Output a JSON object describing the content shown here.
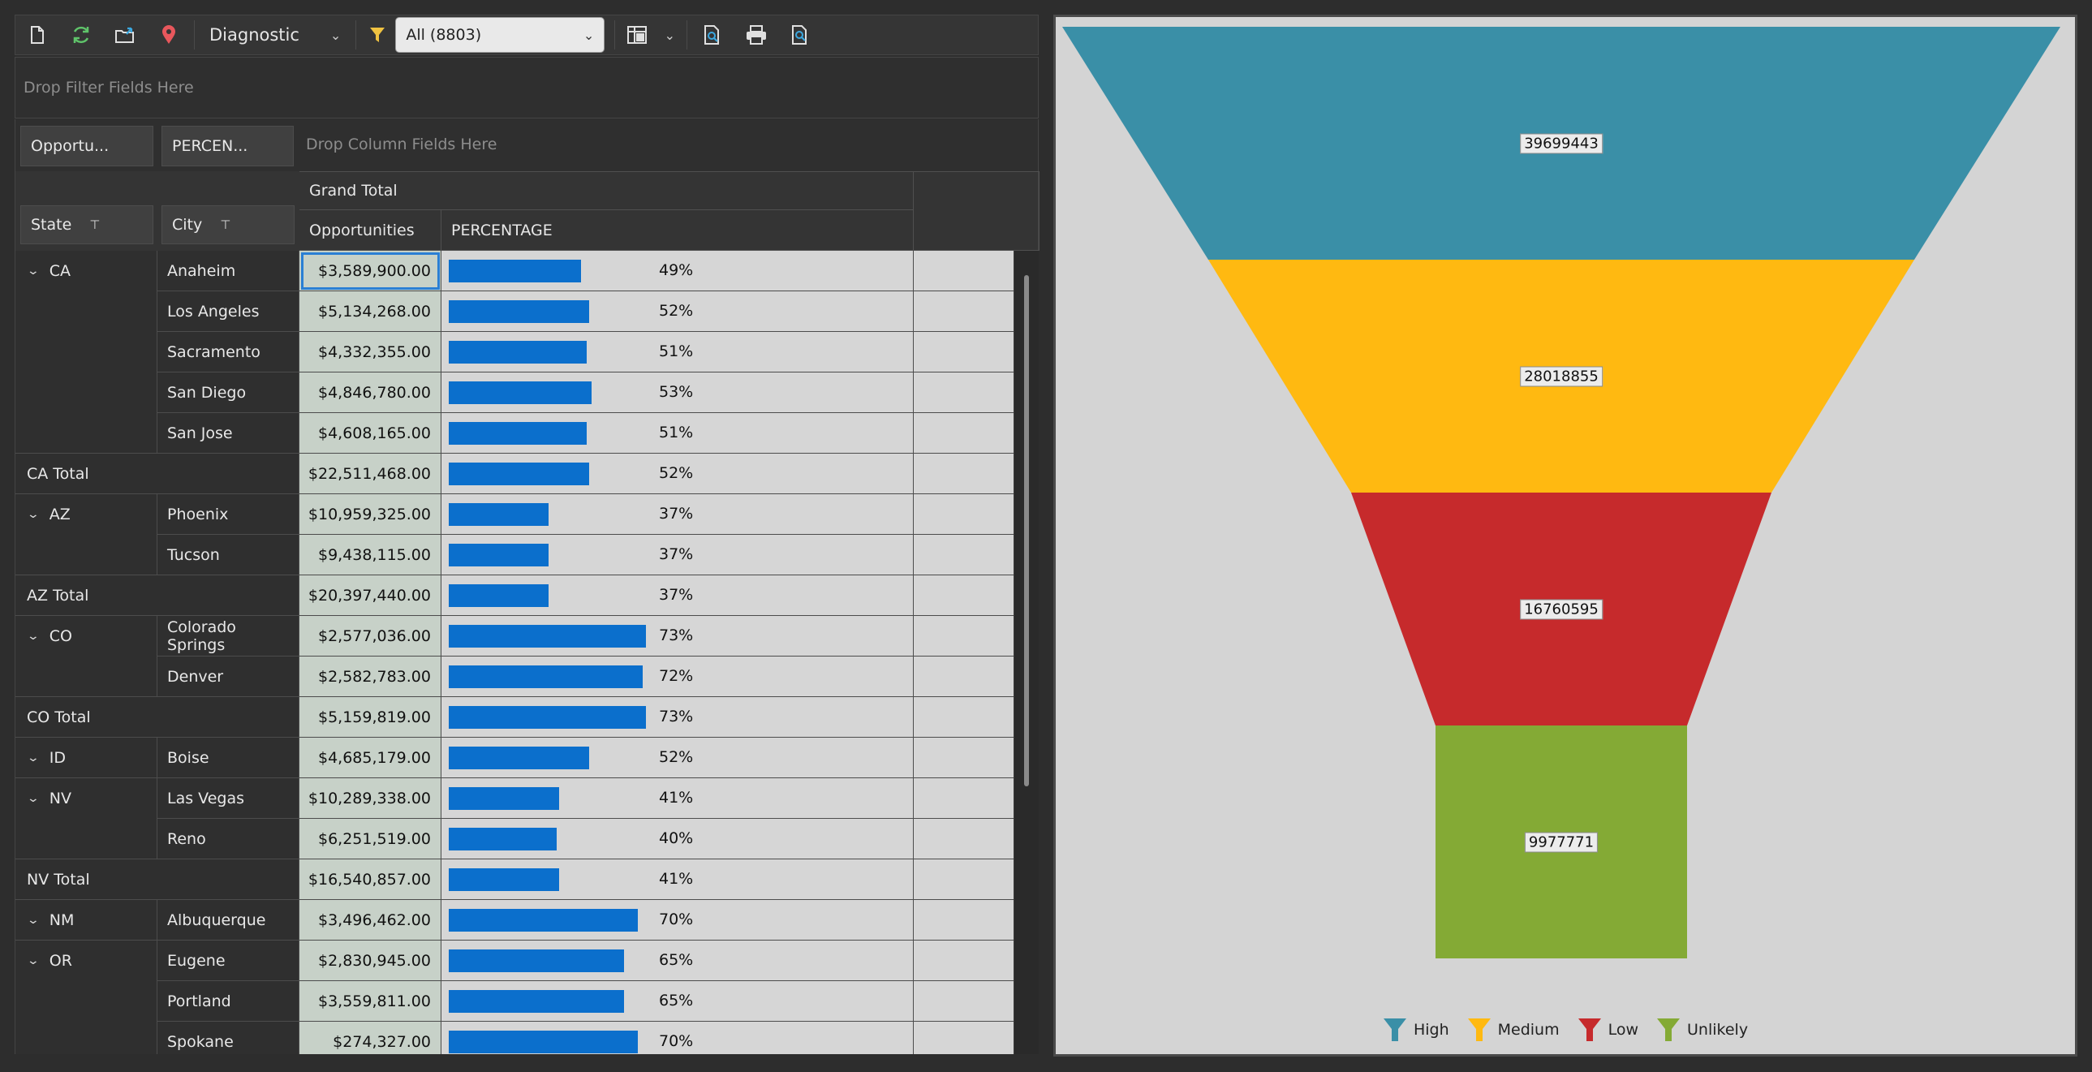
{
  "toolbar": {
    "mode_label": "Diagnostic",
    "filter_value": "All (8803)"
  },
  "filter_area": {
    "placeholder": "Drop Filter Fields Here"
  },
  "column_area": {
    "fields": [
      "Opportu...",
      "PERCEN..."
    ],
    "placeholder": "Drop Column Fields Here"
  },
  "header": {
    "grand_total": "Grand Total",
    "opportunities": "Opportunities",
    "percentage": "PERCENTAGE",
    "row_fields": [
      "State",
      "City"
    ]
  },
  "rows": [
    {
      "type": "data",
      "state": "CA",
      "city": "Anaheim",
      "opp": "$3,589,900.00",
      "pct": "49%",
      "frac": 0.49
    },
    {
      "type": "data",
      "state": "",
      "city": "Los Angeles",
      "opp": "$5,134,268.00",
      "pct": "52%",
      "frac": 0.52
    },
    {
      "type": "data",
      "state": "",
      "city": "Sacramento",
      "opp": "$4,332,355.00",
      "pct": "51%",
      "frac": 0.51
    },
    {
      "type": "data",
      "state": "",
      "city": "San Diego",
      "opp": "$4,846,780.00",
      "pct": "53%",
      "frac": 0.53
    },
    {
      "type": "data",
      "state": "",
      "city": "San Jose",
      "opp": "$4,608,165.00",
      "pct": "51%",
      "frac": 0.51
    },
    {
      "type": "total",
      "label": "CA Total",
      "opp": "$22,511,468.00",
      "pct": "52%",
      "frac": 0.52
    },
    {
      "type": "data",
      "state": "AZ",
      "city": "Phoenix",
      "opp": "$10,959,325.00",
      "pct": "37%",
      "frac": 0.37
    },
    {
      "type": "data",
      "state": "",
      "city": "Tucson",
      "opp": "$9,438,115.00",
      "pct": "37%",
      "frac": 0.37
    },
    {
      "type": "total",
      "label": "AZ Total",
      "opp": "$20,397,440.00",
      "pct": "37%",
      "frac": 0.37
    },
    {
      "type": "data",
      "state": "CO",
      "city": "Colorado Springs",
      "opp": "$2,577,036.00",
      "pct": "73%",
      "frac": 0.73
    },
    {
      "type": "data",
      "state": "",
      "city": "Denver",
      "opp": "$2,582,783.00",
      "pct": "72%",
      "frac": 0.72
    },
    {
      "type": "total",
      "label": "CO Total",
      "opp": "$5,159,819.00",
      "pct": "73%",
      "frac": 0.73
    },
    {
      "type": "data",
      "state": "ID",
      "city": "Boise",
      "opp": "$4,685,179.00",
      "pct": "52%",
      "frac": 0.52
    },
    {
      "type": "data",
      "state": "NV",
      "city": "Las Vegas",
      "opp": "$10,289,338.00",
      "pct": "41%",
      "frac": 0.41
    },
    {
      "type": "data",
      "state": "",
      "city": "Reno",
      "opp": "$6,251,519.00",
      "pct": "40%",
      "frac": 0.4
    },
    {
      "type": "total",
      "label": "NV Total",
      "opp": "$16,540,857.00",
      "pct": "41%",
      "frac": 0.41
    },
    {
      "type": "data",
      "state": "NM",
      "city": "Albuquerque",
      "opp": "$3,496,462.00",
      "pct": "70%",
      "frac": 0.7
    },
    {
      "type": "data",
      "state": "OR",
      "city": "Eugene",
      "opp": "$2,830,945.00",
      "pct": "65%",
      "frac": 0.65
    },
    {
      "type": "data",
      "state": "",
      "city": "Portland",
      "opp": "$3,559,811.00",
      "pct": "65%",
      "frac": 0.65
    },
    {
      "type": "data",
      "state": "",
      "city": "Spokane",
      "opp": "$274,327.00",
      "pct": "70%",
      "frac": 0.7
    }
  ],
  "chart_data": {
    "type": "funnel",
    "categories": [
      "High",
      "Medium",
      "Low",
      "Unlikely"
    ],
    "values": [
      39699443,
      28018855,
      16760595,
      9977771
    ],
    "value_labels": [
      "39699443",
      "28018855",
      "16760595",
      "9977771"
    ],
    "colors": [
      "#3a8fa7",
      "#ffb911",
      "#c62a2c",
      "#84aa35"
    ],
    "legend_position": "bottom"
  }
}
